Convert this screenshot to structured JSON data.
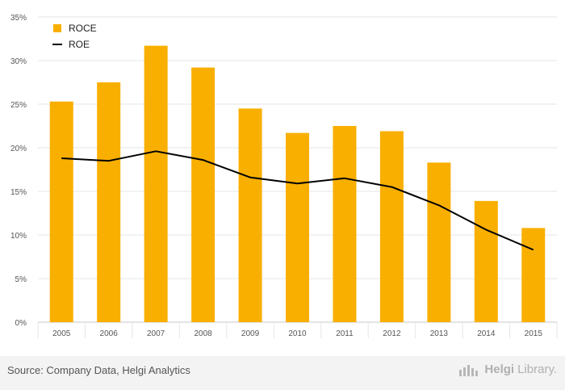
{
  "chart_data": {
    "type": "bar",
    "categories": [
      "2005",
      "2006",
      "2007",
      "2008",
      "2009",
      "2010",
      "2011",
      "2012",
      "2013",
      "2014",
      "2015"
    ],
    "series": [
      {
        "name": "ROCE",
        "type": "bar",
        "color": "#F9AF00",
        "values": [
          25.3,
          27.5,
          31.7,
          29.2,
          24.5,
          21.7,
          22.5,
          21.9,
          18.3,
          13.9,
          10.8
        ]
      },
      {
        "name": "ROE",
        "type": "line",
        "color": "#000000",
        "values": [
          18.8,
          18.5,
          19.6,
          18.6,
          16.6,
          15.9,
          16.5,
          15.5,
          13.4,
          10.6,
          8.3
        ]
      }
    ],
    "yticks": [
      "0%",
      "5%",
      "10%",
      "15%",
      "20%",
      "25%",
      "30%",
      "35%"
    ],
    "ylim": [
      0,
      35
    ],
    "grid": true,
    "legend": "top-left"
  },
  "footer": {
    "source": "Source: Company Data, Helgi Analytics",
    "brand_bold": "Helgi",
    "brand_light": "Library."
  },
  "icons": {
    "logo": "helgi-library-logo-icon"
  }
}
